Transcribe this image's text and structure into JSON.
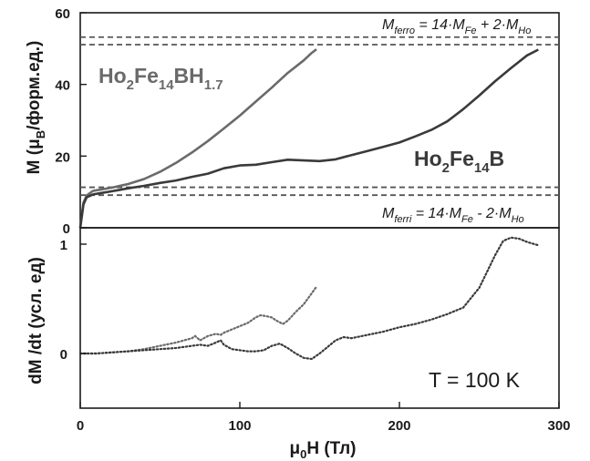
{
  "chart_data": [
    {
      "panel": "top",
      "type": "line",
      "ylabel": {
        "main": "M (μ",
        "sub": "B",
        "rest": "/форм.ед.)"
      },
      "ylim": [
        0,
        60
      ],
      "yticks": [
        "0",
        "20",
        "40",
        "60"
      ],
      "xlim": [
        0,
        300
      ],
      "series": [
        {
          "name": {
            "parts": [
              [
                "Ho",
                ""
              ],
              [
                "2",
                "sub"
              ],
              [
                "Fe",
                ""
              ],
              [
                "14",
                "sub"
              ],
              [
                "BH",
                ""
              ],
              [
                "1.7",
                "sub"
              ]
            ]
          },
          "color": "#6a6a6a",
          "x": [
            0,
            2,
            4,
            8,
            12,
            20,
            30,
            40,
            50,
            60,
            70,
            80,
            90,
            100,
            110,
            120,
            130,
            140,
            145,
            148
          ],
          "y": [
            0,
            7,
            9,
            10.3,
            10.6,
            11.2,
            12.2,
            13.6,
            15.6,
            18.1,
            21,
            24.2,
            27.7,
            31.3,
            35.2,
            39.1,
            43.2,
            46.7,
            48.8,
            49.8
          ]
        },
        {
          "name": {
            "parts": [
              [
                "Ho",
                ""
              ],
              [
                "2",
                "sub"
              ],
              [
                "Fe",
                ""
              ],
              [
                "14",
                "sub"
              ],
              [
                "B",
                ""
              ]
            ]
          },
          "color": "#3a3a3a",
          "x": [
            0,
            2,
            4,
            8,
            12,
            20,
            30,
            40,
            50,
            60,
            70,
            80,
            90,
            100,
            110,
            120,
            130,
            140,
            150,
            160,
            170,
            180,
            190,
            200,
            210,
            220,
            230,
            240,
            250,
            260,
            270,
            280,
            287
          ],
          "y": [
            0,
            6.5,
            8.5,
            9.3,
            9.6,
            10.2,
            11,
            11.7,
            12.5,
            13.2,
            14.2,
            15.1,
            16.6,
            17.4,
            17.6,
            18.3,
            19,
            18.8,
            18.6,
            19.1,
            20.3,
            21.4,
            22.6,
            23.8,
            25.5,
            27.3,
            29.7,
            33.1,
            36.9,
            40.9,
            44.6,
            48.1,
            49.7
          ]
        }
      ],
      "reference_lines": [
        {
          "y": 53.2,
          "color": "#555555"
        },
        {
          "y": 51.1,
          "color": "#555555"
        },
        {
          "y": 11.3,
          "color": "#555555"
        },
        {
          "y": 9.1,
          "color": "#555555"
        }
      ],
      "annotations": {
        "ferro": [
          [
            "M",
            "i"
          ],
          [
            "ferro",
            "isub"
          ],
          [
            " = 14·",
            "i"
          ],
          [
            "M",
            "i"
          ],
          [
            "Fe",
            "isub"
          ],
          [
            " + 2·",
            "i"
          ],
          [
            "M",
            "i"
          ],
          [
            "Ho",
            "isub"
          ]
        ],
        "ferri": [
          [
            "M",
            "i"
          ],
          [
            "ferri",
            "isub"
          ],
          [
            " = 14·",
            "i"
          ],
          [
            "M",
            "i"
          ],
          [
            "Fe",
            "isub"
          ],
          [
            " - 2·",
            "i"
          ],
          [
            "M",
            "i"
          ],
          [
            "Ho",
            "isub"
          ]
        ]
      }
    },
    {
      "panel": "bottom",
      "type": "line",
      "ylabel": "dM /dt (усл. ед)",
      "ylim": [
        -0.5,
        1.15
      ],
      "yticks": [
        "0",
        "1"
      ],
      "xlim": [
        0,
        300
      ],
      "xticks": [
        "0",
        "100",
        "200",
        "300"
      ],
      "xlabel": {
        "main": "μ",
        "sub": "0",
        "rest": "H (Тл)"
      },
      "series": [
        {
          "color": "#6a6a6a",
          "style": "dotted",
          "x": [
            0,
            10,
            20,
            30,
            40,
            50,
            60,
            65,
            70,
            72,
            75,
            80,
            85,
            88,
            90,
            95,
            100,
            105,
            110,
            113,
            117,
            120,
            123,
            127,
            130,
            135,
            140,
            145,
            148
          ],
          "y": [
            0,
            0,
            0.01,
            0.02,
            0.04,
            0.07,
            0.1,
            0.12,
            0.14,
            0.16,
            0.12,
            0.16,
            0.18,
            0.17,
            0.19,
            0.22,
            0.25,
            0.28,
            0.33,
            0.35,
            0.34,
            0.33,
            0.3,
            0.27,
            0.3,
            0.38,
            0.45,
            0.55,
            0.61
          ]
        },
        {
          "color": "#3a3a3a",
          "style": "dotted",
          "x": [
            0,
            10,
            20,
            30,
            40,
            50,
            60,
            70,
            75,
            80,
            85,
            88,
            90,
            95,
            100,
            105,
            110,
            115,
            120,
            125,
            130,
            135,
            140,
            145,
            150,
            155,
            160,
            165,
            170,
            180,
            190,
            200,
            210,
            220,
            230,
            240,
            250,
            255,
            260,
            265,
            270,
            275,
            280,
            287
          ],
          "y": [
            0,
            0,
            0.01,
            0.02,
            0.03,
            0.04,
            0.05,
            0.07,
            0.08,
            0.07,
            0.1,
            0.12,
            0.08,
            0.04,
            0.03,
            0.02,
            0.02,
            0.03,
            0.07,
            0.09,
            0.05,
            0.0,
            -0.04,
            -0.05,
            0.0,
            0.06,
            0.12,
            0.15,
            0.14,
            0.17,
            0.2,
            0.24,
            0.27,
            0.31,
            0.36,
            0.42,
            0.6,
            0.75,
            0.9,
            1.03,
            1.06,
            1.05,
            1.02,
            0.99
          ]
        }
      ],
      "annotation": "T = 100 K"
    }
  ]
}
